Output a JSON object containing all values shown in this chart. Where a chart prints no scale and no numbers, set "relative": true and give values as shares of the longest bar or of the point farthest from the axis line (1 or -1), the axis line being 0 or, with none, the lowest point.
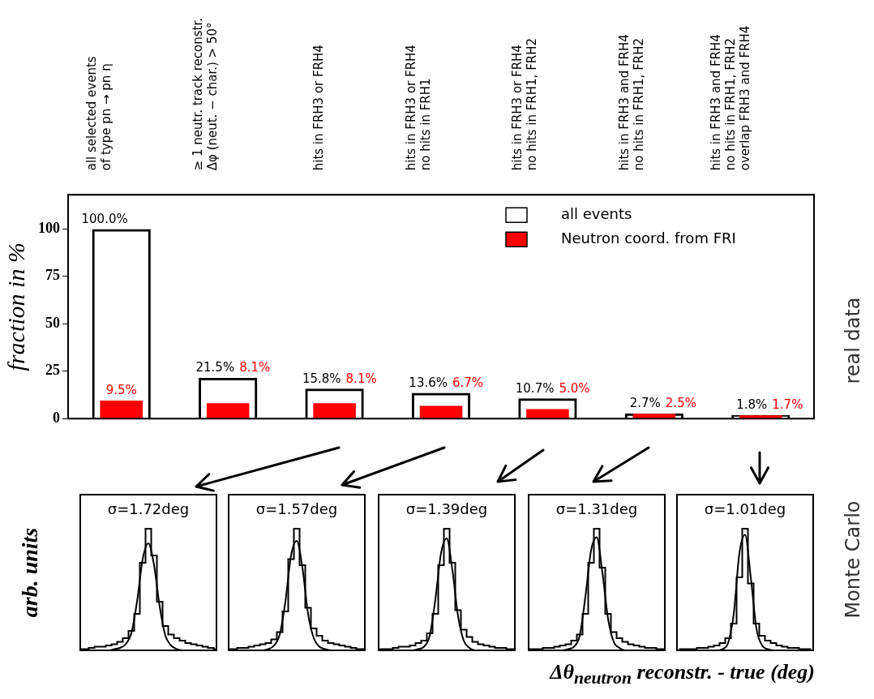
{
  "chart_data": [
    {
      "type": "bar",
      "ylabel": "fraction in %",
      "categories": [
        "all selected events\nof type pn → pn η",
        "≥ 1 neutr. track reconstr.\nΔφ (neut. − char.) > 50°",
        "hits in FRH3 or FRH4",
        "hits in FRH3 or FRH4\nno hits in FRH1",
        "hits in FRH3 or FRH4\nno hits in FRH1, FRH2",
        "hits in FRH3 and FRH4\nno hits in FRH1, FRH2",
        "hits in FRH3 and FRH4\nno hits in FRH1, FRH2\noverlap FRH3 and FRH4"
      ],
      "series": [
        {
          "name": "all events",
          "color": "#000000",
          "values": [
            100,
            21.5,
            15.8,
            13.6,
            10.7,
            2.7,
            1.8
          ],
          "value_labels": [
            "100.0%",
            "21.5%",
            "15.8%",
            "13.6%",
            "10.7%",
            "2.7%",
            "1.8%"
          ]
        },
        {
          "name": "Neutron coord. from FRI",
          "color": "#ff0000",
          "values": [
            9.5,
            8.1,
            8.1,
            6.7,
            5.0,
            2.5,
            1.7
          ],
          "value_labels": [
            "9.5%",
            "8.1%",
            "8.1%",
            "6.7%",
            "5.0%",
            "2.5%",
            "1.7%"
          ]
        }
      ],
      "ylim": [
        0,
        118
      ],
      "yticks": [
        0,
        25,
        50,
        75,
        100
      ],
      "legend": "top right",
      "annotations": [
        "real data"
      ]
    },
    {
      "type": "line",
      "title": "σ=1.72deg",
      "ylabel": "arb. units",
      "relative": true,
      "categories": [
        null,
        null,
        null,
        null,
        null,
        null,
        null,
        null,
        null,
        null,
        null,
        null,
        null,
        null,
        null,
        null,
        null,
        null,
        null,
        null,
        null,
        null,
        null,
        null,
        null
      ],
      "series": [
        {
          "type": "step",
          "color": "#000000",
          "values": [
            0.01,
            0.01,
            0.02,
            0.03,
            0.03,
            0.04,
            0.05,
            0.07,
            0.1,
            0.16,
            0.3,
            0.72,
            1.0,
            0.78,
            0.4,
            0.2,
            0.13,
            0.1,
            0.08,
            0.06,
            0.05,
            0.04,
            0.03,
            0.02,
            0.01
          ]
        },
        {
          "type": "line",
          "color": "#000000",
          "values": [
            0,
            0,
            0,
            0,
            0,
            0,
            0.01,
            0.02,
            0.05,
            0.14,
            0.4,
            0.75,
            0.88,
            0.7,
            0.36,
            0.12,
            0.04,
            0.01,
            0,
            0,
            0,
            0,
            0,
            0,
            0
          ]
        }
      ]
    },
    {
      "type": "line",
      "title": "σ=1.57deg",
      "relative": true,
      "categories": [
        null,
        null,
        null,
        null,
        null,
        null,
        null,
        null,
        null,
        null,
        null,
        null,
        null,
        null,
        null,
        null,
        null,
        null,
        null,
        null,
        null,
        null,
        null,
        null,
        null
      ],
      "series": [
        {
          "type": "step",
          "color": "#000000",
          "values": [
            0.01,
            0.01,
            0.02,
            0.02,
            0.03,
            0.04,
            0.05,
            0.06,
            0.09,
            0.15,
            0.32,
            0.75,
            1.0,
            0.7,
            0.35,
            0.18,
            0.12,
            0.08,
            0.06,
            0.05,
            0.04,
            0.03,
            0.02,
            0.01,
            0.01
          ]
        },
        {
          "type": "line",
          "color": "#000000",
          "values": [
            0,
            0,
            0,
            0,
            0,
            0,
            0,
            0.01,
            0.04,
            0.13,
            0.4,
            0.78,
            0.9,
            0.68,
            0.3,
            0.1,
            0.03,
            0.01,
            0,
            0,
            0,
            0,
            0,
            0,
            0
          ]
        }
      ]
    },
    {
      "type": "line",
      "title": "σ=1.39deg",
      "relative": true,
      "categories": [
        null,
        null,
        null,
        null,
        null,
        null,
        null,
        null,
        null,
        null,
        null,
        null,
        null,
        null,
        null,
        null,
        null,
        null,
        null,
        null,
        null,
        null,
        null,
        null,
        null
      ],
      "series": [
        {
          "type": "step",
          "color": "#000000",
          "values": [
            0.01,
            0.01,
            0.01,
            0.02,
            0.03,
            0.03,
            0.04,
            0.06,
            0.08,
            0.14,
            0.3,
            0.7,
            1.0,
            0.72,
            0.33,
            0.17,
            0.11,
            0.07,
            0.05,
            0.04,
            0.03,
            0.02,
            0.02,
            0.01,
            0.01
          ]
        },
        {
          "type": "line",
          "color": "#000000",
          "values": [
            0,
            0,
            0,
            0,
            0,
            0,
            0,
            0.01,
            0.03,
            0.12,
            0.42,
            0.8,
            0.92,
            0.66,
            0.28,
            0.08,
            0.02,
            0,
            0,
            0,
            0,
            0,
            0,
            0,
            0
          ]
        }
      ]
    },
    {
      "type": "line",
      "title": "σ=1.31deg",
      "relative": true,
      "categories": [
        null,
        null,
        null,
        null,
        null,
        null,
        null,
        null,
        null,
        null,
        null,
        null,
        null,
        null,
        null,
        null,
        null,
        null,
        null,
        null,
        null,
        null,
        null,
        null,
        null
      ],
      "series": [
        {
          "type": "step",
          "color": "#000000",
          "values": [
            0.01,
            0.01,
            0.01,
            0.02,
            0.02,
            0.03,
            0.04,
            0.05,
            0.08,
            0.13,
            0.3,
            0.72,
            1.0,
            0.68,
            0.3,
            0.15,
            0.1,
            0.07,
            0.05,
            0.04,
            0.03,
            0.02,
            0.02,
            0.01,
            0.01
          ]
        },
        {
          "type": "line",
          "color": "#000000",
          "values": [
            0,
            0,
            0,
            0,
            0,
            0,
            0,
            0.01,
            0.03,
            0.12,
            0.44,
            0.82,
            0.93,
            0.64,
            0.26,
            0.07,
            0.02,
            0,
            0,
            0,
            0,
            0,
            0,
            0,
            0
          ]
        }
      ]
    },
    {
      "type": "line",
      "title": "σ=1.01deg",
      "xlabel": "Δθ$_{neutron}$ reconstr. - true  (deg)",
      "relative": true,
      "annotations": [
        "Monte Carlo"
      ],
      "categories": [
        null,
        null,
        null,
        null,
        null,
        null,
        null,
        null,
        null,
        null,
        null,
        null,
        null,
        null,
        null,
        null,
        null,
        null,
        null,
        null,
        null,
        null,
        null,
        null,
        null
      ],
      "series": [
        {
          "type": "step",
          "color": "#000000",
          "values": [
            0,
            0.01,
            0.01,
            0.01,
            0.02,
            0.02,
            0.03,
            0.04,
            0.06,
            0.1,
            0.22,
            0.6,
            1.0,
            0.55,
            0.22,
            0.12,
            0.08,
            0.06,
            0.04,
            0.03,
            0.02,
            0.02,
            0.01,
            0.01,
            0
          ]
        },
        {
          "type": "line",
          "color": "#000000",
          "values": [
            0,
            0,
            0,
            0,
            0,
            0,
            0,
            0,
            0.01,
            0.06,
            0.3,
            0.8,
            0.95,
            0.6,
            0.18,
            0.04,
            0.01,
            0,
            0,
            0,
            0,
            0,
            0,
            0,
            0
          ]
        }
      ]
    }
  ]
}
